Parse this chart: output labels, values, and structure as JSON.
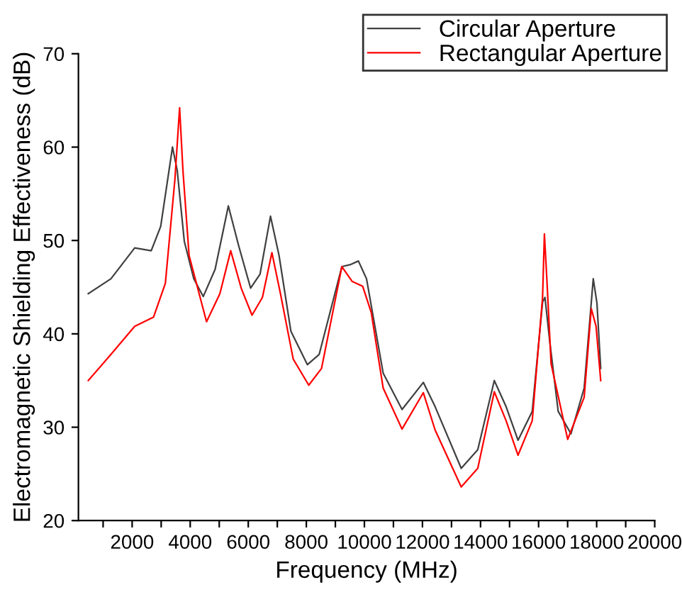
{
  "chart_data": {
    "type": "line",
    "xlabel": "Frequency (MHz)",
    "ylabel": "Electromagnetic Shielding Effectiveness (dB)",
    "xlim": [
      150,
      20000
    ],
    "ylim": [
      20,
      70
    ],
    "xticks": [
      {
        "value": 1000,
        "label": null
      },
      2000,
      {
        "value": 3000,
        "label": null
      },
      4000,
      {
        "value": 5000,
        "label": null
      },
      6000,
      {
        "value": 7000,
        "label": null
      },
      8000,
      {
        "value": 9000,
        "label": null
      },
      10000,
      {
        "value": 11000,
        "label": null
      },
      12000,
      {
        "value": 13000,
        "label": null
      },
      14000,
      {
        "value": 15000,
        "label": null
      },
      16000,
      {
        "value": 17000,
        "label": null
      },
      18000,
      {
        "value": 19000,
        "label": null
      },
      20000
    ],
    "yticks": [
      20,
      30,
      40,
      50,
      60,
      70
    ],
    "grid": false,
    "legend": "top right",
    "marker": "none",
    "line_style": "solid",
    "series": [
      {
        "name": "Circular Aperture",
        "color": "#404040",
        "x": [
          489,
          1271,
          2088,
          2657,
          2983,
          3390,
          3553,
          3797,
          4124,
          4450,
          4857,
          5314,
          5672,
          6080,
          6406,
          6766,
          7060,
          7467,
          8036,
          8443,
          9224,
          9500,
          9794,
          10073,
          10646,
          11297,
          12030,
          12436,
          13335,
          13905,
          14474,
          14881,
          15292,
          15781,
          16137,
          16220,
          16380,
          16675,
          17115,
          17570,
          17883,
          18010,
          18140
        ],
        "values": [
          44.3,
          45.9,
          49.2,
          48.9,
          51.5,
          60.0,
          57.5,
          49.9,
          45.9,
          44.0,
          46.9,
          53.7,
          49.4,
          44.9,
          46.4,
          52.6,
          48.4,
          40.3,
          36.7,
          37.8,
          47.2,
          47.4,
          47.8,
          45.9,
          35.8,
          31.9,
          34.8,
          32.2,
          25.6,
          27.6,
          35.0,
          32.2,
          28.6,
          31.7,
          43.4,
          43.9,
          39.3,
          31.7,
          29.3,
          34.2,
          45.9,
          43.3,
          36.3
        ]
      },
      {
        "name": "Rectangular Aperture",
        "color": "#ff0000",
        "x": [
          489,
          1271,
          2088,
          2738,
          3144,
          3472,
          3635,
          3750,
          3961,
          4563,
          5022,
          5395,
          5756,
          6129,
          6487,
          6814,
          7109,
          7548,
          8083,
          8524,
          9224,
          9582,
          9940,
          10235,
          10646,
          11297,
          12030,
          12436,
          13335,
          13905,
          14474,
          14881,
          15292,
          15781,
          16137,
          16200,
          16284,
          16430,
          17003,
          17570,
          17815,
          17980,
          18140
        ],
        "values": [
          35.0,
          37.8,
          40.8,
          41.8,
          45.4,
          56.5,
          64.2,
          57.5,
          48.4,
          41.3,
          44.3,
          48.9,
          44.9,
          42.0,
          43.9,
          48.7,
          44.3,
          37.3,
          34.5,
          36.3,
          47.2,
          45.6,
          45.1,
          42.3,
          34.2,
          29.8,
          33.7,
          29.7,
          23.6,
          25.6,
          33.8,
          30.7,
          27.0,
          30.7,
          43.9,
          50.7,
          45.9,
          36.8,
          28.7,
          33.2,
          42.7,
          40.8,
          35.0
        ]
      }
    ]
  }
}
